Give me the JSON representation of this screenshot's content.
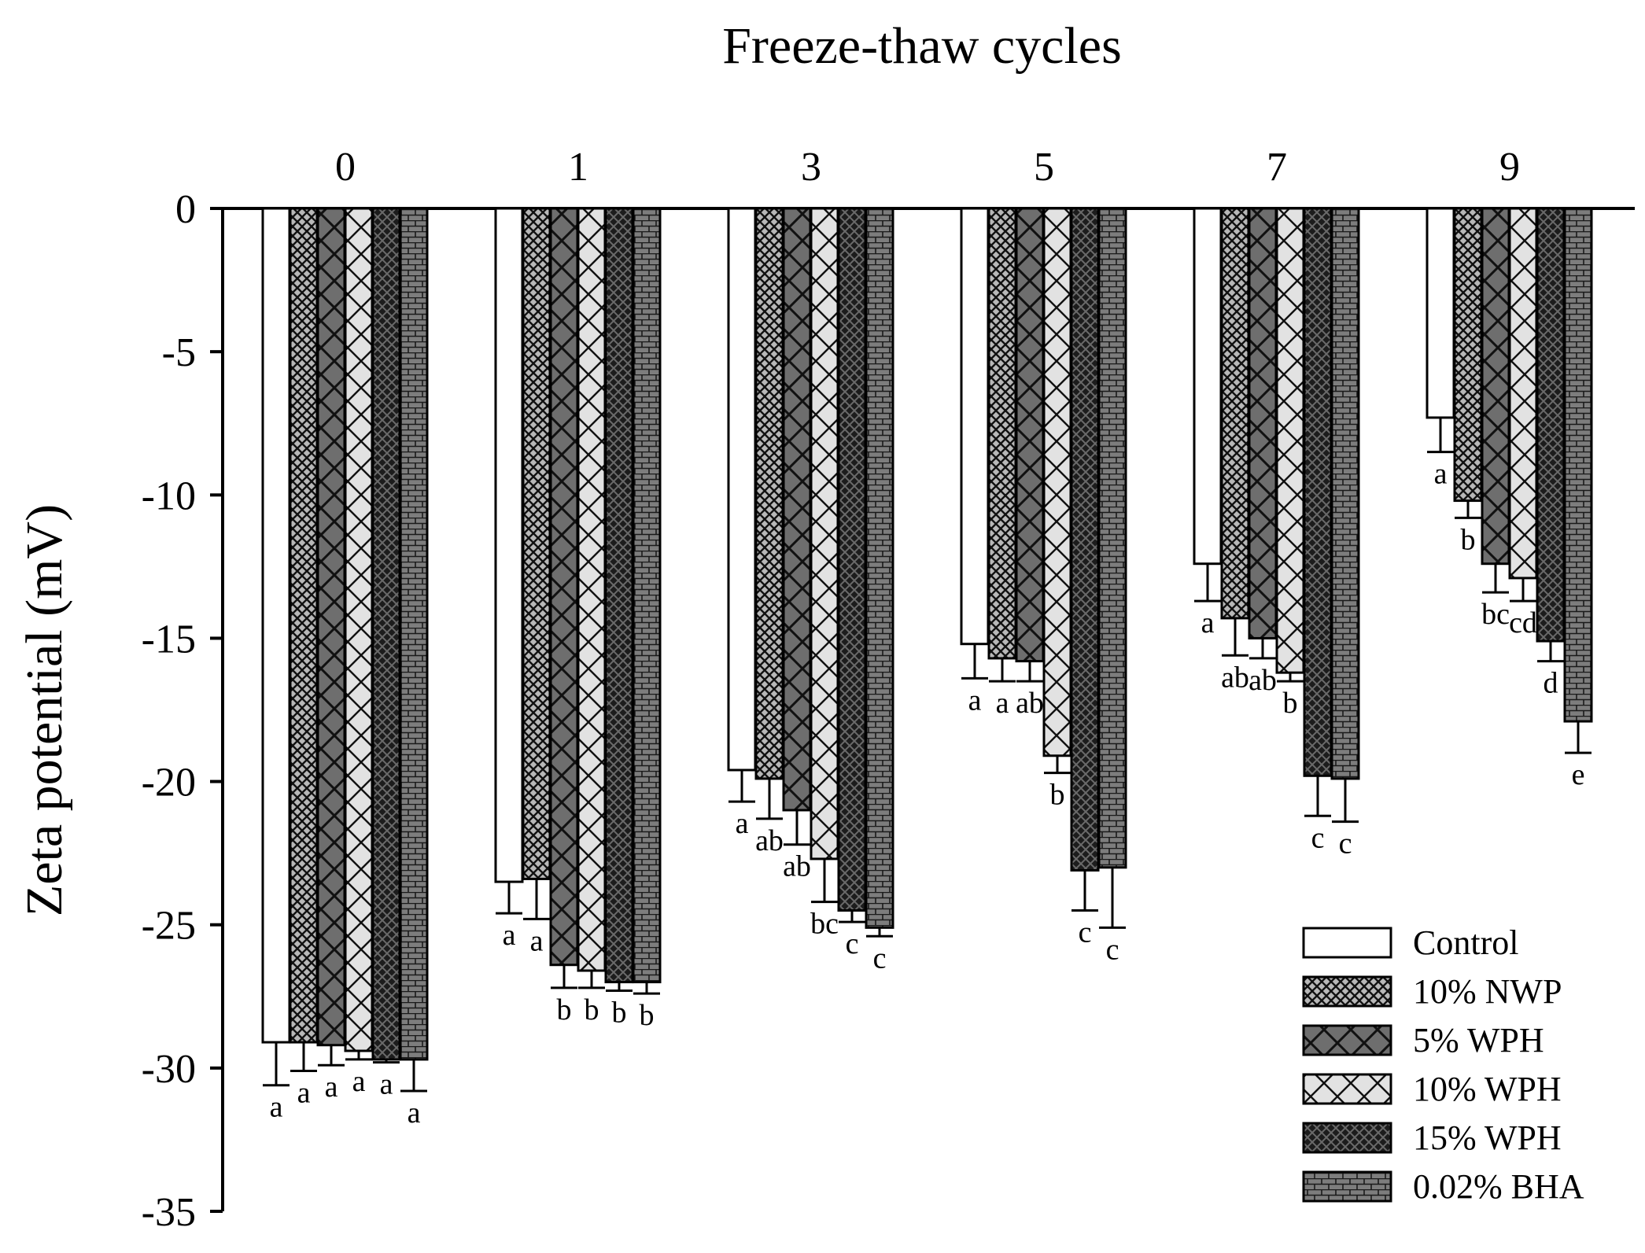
{
  "chart_data": {
    "type": "bar",
    "title": "",
    "xlabel": "Freeze-thaw cycles",
    "ylabel": "Zeta potential (mV)",
    "ylim": [
      -35,
      0
    ],
    "yticks": [
      "0",
      "-5",
      "-10",
      "-15",
      "-20",
      "-25",
      "-30",
      "-35"
    ],
    "ytick_values": [
      0,
      -5,
      -10,
      -15,
      -20,
      -25,
      -30,
      -35
    ],
    "x_axis_position": "top",
    "legend_position": "bottom-right",
    "grid": false,
    "categories": [
      "0",
      "1",
      "3",
      "5",
      "7",
      "9"
    ],
    "series": [
      {
        "name": "Control",
        "pattern": "plain",
        "values": [
          -29.1,
          -23.5,
          -19.6,
          -15.2,
          -12.4,
          -7.3
        ],
        "errors": [
          1.5,
          1.1,
          1.1,
          1.2,
          1.3,
          1.2
        ],
        "labels": [
          "a",
          "a",
          "a",
          "a",
          "a",
          "a"
        ]
      },
      {
        "name": "10% NWP",
        "pattern": "fine-cross",
        "values": [
          -29.1,
          -23.4,
          -19.9,
          -15.7,
          -14.3,
          -10.2
        ],
        "errors": [
          1.0,
          1.4,
          1.4,
          0.8,
          1.3,
          0.6
        ],
        "labels": [
          "a",
          "a",
          "ab",
          "a",
          "ab",
          "b"
        ]
      },
      {
        "name": "5% WPH",
        "pattern": "dark-diamond",
        "values": [
          -29.2,
          -26.4,
          -21.0,
          -15.8,
          -15.0,
          -12.4
        ],
        "errors": [
          0.7,
          0.8,
          1.2,
          0.7,
          0.7,
          1.0
        ],
        "labels": [
          "a",
          "b",
          "ab",
          "ab",
          "ab",
          "bc"
        ]
      },
      {
        "name": "10% WPH",
        "pattern": "light-x",
        "values": [
          -29.4,
          -26.6,
          -22.7,
          -19.1,
          -16.2,
          -12.9
        ],
        "errors": [
          0.3,
          0.6,
          1.5,
          0.6,
          0.3,
          0.8
        ],
        "labels": [
          "a",
          "b",
          "bc",
          "b",
          "b",
          "cd"
        ]
      },
      {
        "name": "15% WPH",
        "pattern": "very-dark-cross",
        "values": [
          -29.7,
          -27.0,
          -24.5,
          -23.1,
          -19.8,
          -15.1
        ],
        "errors": [
          0.1,
          0.3,
          0.4,
          1.4,
          1.4,
          0.7
        ],
        "labels": [
          "a",
          "b",
          "c",
          "c",
          "c",
          "d"
        ]
      },
      {
        "name": "0.02% BHA",
        "pattern": "brick",
        "values": [
          -29.7,
          -27.0,
          -25.1,
          -23.0,
          -19.9,
          -17.9
        ],
        "errors": [
          1.1,
          0.4,
          0.3,
          2.1,
          1.5,
          1.1
        ],
        "labels": [
          "a",
          "b",
          "c",
          "c",
          "c",
          "e"
        ]
      }
    ]
  }
}
